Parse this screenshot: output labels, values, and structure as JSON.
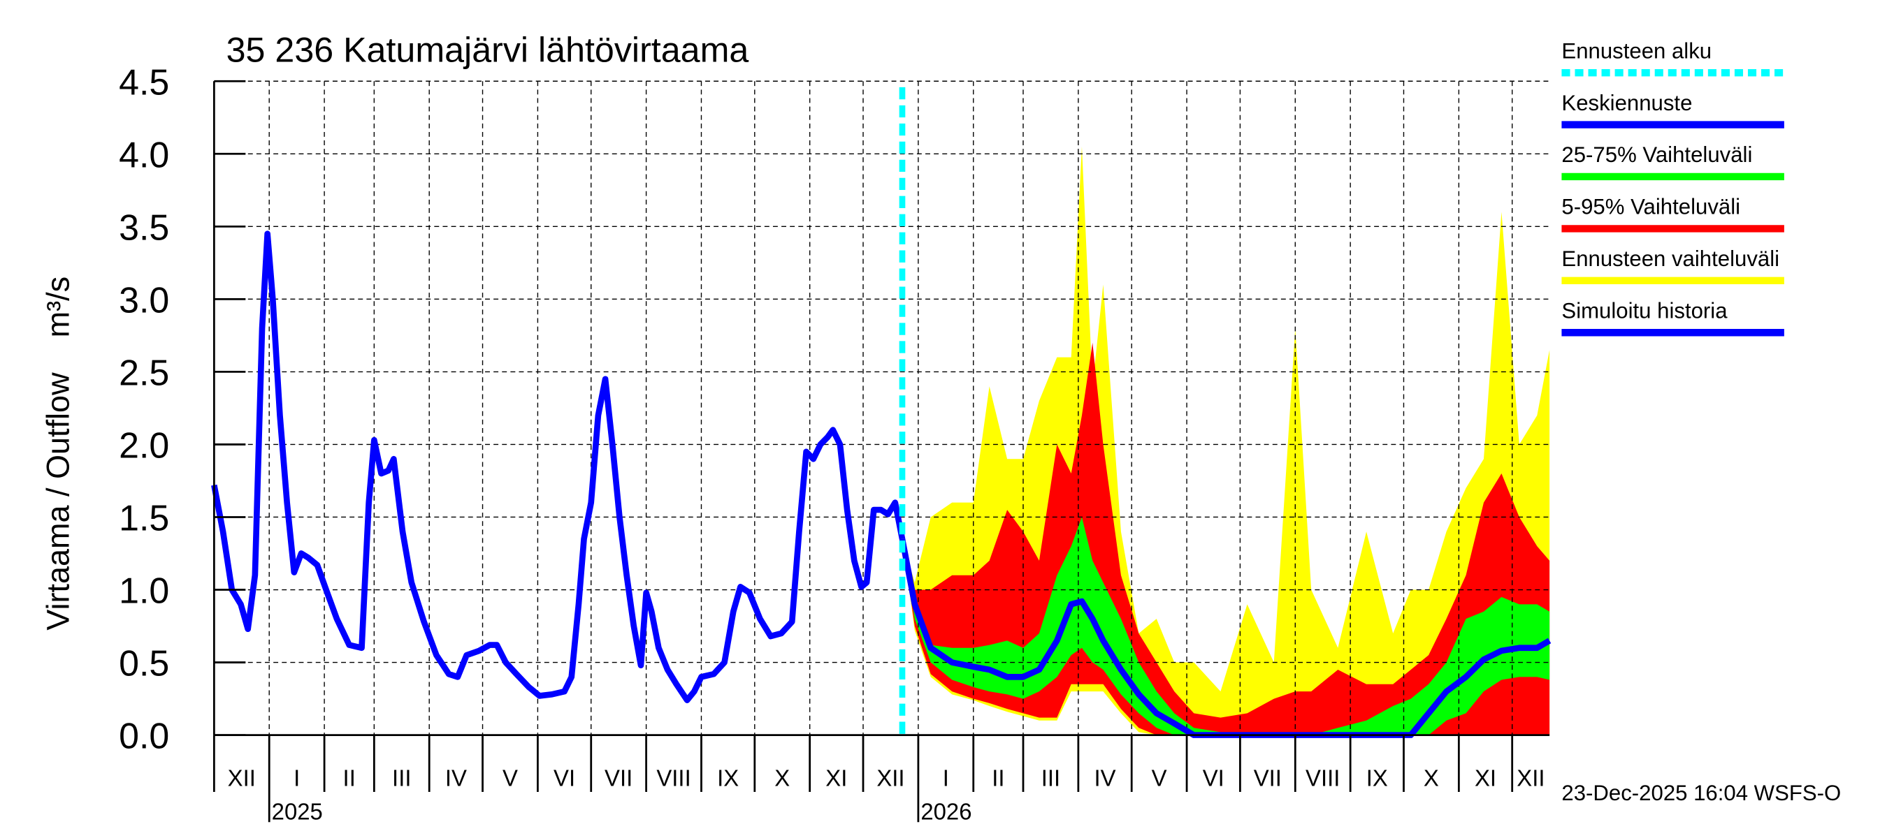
{
  "chart_data": {
    "type": "area",
    "title": "35 236 Katumajärvi lähtövirtaama",
    "ylabel": "Virtaama / Outflow    m³/s",
    "xlabel": "",
    "ylim": [
      0,
      4.5
    ],
    "y_ticks": [
      "0.0",
      "0.5",
      "1.0",
      "1.5",
      "2.0",
      "2.5",
      "3.0",
      "3.5",
      "4.0",
      "4.5"
    ],
    "xlim": [
      "2024-12-01",
      "2026-12-22"
    ],
    "month_labels": [
      "XII",
      "I",
      "II",
      "III",
      "IV",
      "V",
      "VI",
      "VII",
      "VIII",
      "IX",
      "X",
      "XI",
      "XII",
      "I",
      "II",
      "III",
      "IV",
      "V",
      "VI",
      "VII",
      "VIII",
      "IX",
      "X",
      "XI",
      "XII"
    ],
    "year_labels": [
      {
        "label": "2025",
        "date": "2025-01-01"
      },
      {
        "label": "2026",
        "date": "2026-01-01"
      }
    ],
    "grid": true,
    "legend_position": "right",
    "forecast_start": "2025-12-23",
    "timestamp": "23-Dec-2025 16:04 WSFS-O",
    "colors": {
      "forecast_start": "#00ffff",
      "median": "#0000ff",
      "p25_75": "#00ff00",
      "p5_95": "#ff0000",
      "range": "#ffff00",
      "history": "#0000ff"
    },
    "legend": [
      {
        "label": "Ennusteen alku",
        "color": "#00ffff",
        "style": "dashed"
      },
      {
        "label": "Keskiennuste",
        "color": "#0000ff",
        "style": "solid"
      },
      {
        "label": "25-75% Vaihteluväli",
        "color": "#00ff00",
        "style": "solid"
      },
      {
        "label": "5-95% Vaihteluväli",
        "color": "#ff0000",
        "style": "solid"
      },
      {
        "label": "Ennusteen vaihteluväli",
        "color": "#ffff00",
        "style": "solid"
      },
      {
        "label": "Simuloitu historia",
        "color": "#0000ff",
        "style": "solid"
      }
    ],
    "history": [
      [
        "2024-12-01",
        1.72
      ],
      [
        "2024-12-06",
        1.4
      ],
      [
        "2024-12-11",
        1.0
      ],
      [
        "2024-12-16",
        0.9
      ],
      [
        "2024-12-20",
        0.73
      ],
      [
        "2024-12-24",
        1.1
      ],
      [
        "2024-12-28",
        2.8
      ],
      [
        "2024-12-31",
        3.45
      ],
      [
        "2025-01-03",
        3.0
      ],
      [
        "2025-01-07",
        2.2
      ],
      [
        "2025-01-11",
        1.6
      ],
      [
        "2025-01-15",
        1.12
      ],
      [
        "2025-01-19",
        1.25
      ],
      [
        "2025-01-23",
        1.22
      ],
      [
        "2025-01-28",
        1.17
      ],
      [
        "2025-02-02",
        1.0
      ],
      [
        "2025-02-08",
        0.8
      ],
      [
        "2025-02-15",
        0.62
      ],
      [
        "2025-02-22",
        0.6
      ],
      [
        "2025-02-26",
        1.6
      ],
      [
        "2025-03-01",
        2.03
      ],
      [
        "2025-03-05",
        1.8
      ],
      [
        "2025-03-09",
        1.82
      ],
      [
        "2025-03-12",
        1.9
      ],
      [
        "2025-03-17",
        1.4
      ],
      [
        "2025-03-22",
        1.05
      ],
      [
        "2025-03-29",
        0.78
      ],
      [
        "2025-04-05",
        0.55
      ],
      [
        "2025-04-12",
        0.42
      ],
      [
        "2025-04-17",
        0.4
      ],
      [
        "2025-04-22",
        0.55
      ],
      [
        "2025-04-29",
        0.58
      ],
      [
        "2025-05-05",
        0.62
      ],
      [
        "2025-05-09",
        0.62
      ],
      [
        "2025-05-14",
        0.5
      ],
      [
        "2025-05-20",
        0.42
      ],
      [
        "2025-05-27",
        0.33
      ],
      [
        "2025-06-02",
        0.27
      ],
      [
        "2025-06-09",
        0.28
      ],
      [
        "2025-06-16",
        0.3
      ],
      [
        "2025-06-20",
        0.4
      ],
      [
        "2025-06-24",
        0.9
      ],
      [
        "2025-06-27",
        1.35
      ],
      [
        "2025-07-01",
        1.6
      ],
      [
        "2025-07-05",
        2.2
      ],
      [
        "2025-07-09",
        2.45
      ],
      [
        "2025-07-13",
        2.0
      ],
      [
        "2025-07-17",
        1.5
      ],
      [
        "2025-07-21",
        1.1
      ],
      [
        "2025-07-25",
        0.75
      ],
      [
        "2025-07-29",
        0.48
      ],
      [
        "2025-08-01",
        0.98
      ],
      [
        "2025-08-04",
        0.85
      ],
      [
        "2025-08-08",
        0.6
      ],
      [
        "2025-08-13",
        0.45
      ],
      [
        "2025-08-18",
        0.35
      ],
      [
        "2025-08-24",
        0.24
      ],
      [
        "2025-08-28",
        0.3
      ],
      [
        "2025-09-01",
        0.4
      ],
      [
        "2025-09-08",
        0.42
      ],
      [
        "2025-09-14",
        0.5
      ],
      [
        "2025-09-19",
        0.85
      ],
      [
        "2025-09-23",
        1.02
      ],
      [
        "2025-09-28",
        0.98
      ],
      [
        "2025-10-04",
        0.8
      ],
      [
        "2025-10-10",
        0.68
      ],
      [
        "2025-10-16",
        0.7
      ],
      [
        "2025-10-22",
        0.78
      ],
      [
        "2025-10-26",
        1.4
      ],
      [
        "2025-10-30",
        1.95
      ],
      [
        "2025-11-03",
        1.9
      ],
      [
        "2025-11-07",
        2.0
      ],
      [
        "2025-11-11",
        2.05
      ],
      [
        "2025-11-14",
        2.1
      ],
      [
        "2025-11-18",
        2.0
      ],
      [
        "2025-11-22",
        1.55
      ],
      [
        "2025-11-26",
        1.2
      ],
      [
        "2025-11-30",
        1.02
      ],
      [
        "2025-12-03",
        1.05
      ],
      [
        "2025-12-07",
        1.55
      ],
      [
        "2025-12-11",
        1.55
      ],
      [
        "2025-12-15",
        1.52
      ],
      [
        "2025-12-19",
        1.6
      ],
      [
        "2025-12-23",
        1.35
      ]
    ],
    "forecast_columns": [
      "date",
      "median",
      "p25",
      "p75",
      "p5",
      "p95",
      "min",
      "max"
    ],
    "forecast": [
      [
        "2025-12-23",
        1.35,
        1.35,
        1.35,
        1.35,
        1.35,
        1.35,
        1.35
      ],
      [
        "2025-12-30",
        0.9,
        0.8,
        0.95,
        0.75,
        1.0,
        0.72,
        1.05
      ],
      [
        "2026-01-08",
        0.6,
        0.5,
        0.62,
        0.42,
        1.0,
        0.4,
        1.5
      ],
      [
        "2026-01-20",
        0.5,
        0.38,
        0.6,
        0.3,
        1.1,
        0.28,
        1.6
      ],
      [
        "2026-02-01",
        0.47,
        0.33,
        0.6,
        0.25,
        1.1,
        0.24,
        1.6
      ],
      [
        "2026-02-10",
        0.45,
        0.3,
        0.62,
        0.22,
        1.2,
        0.2,
        2.4
      ],
      [
        "2026-02-20",
        0.4,
        0.28,
        0.65,
        0.18,
        1.55,
        0.16,
        1.9
      ],
      [
        "2026-03-01",
        0.4,
        0.25,
        0.6,
        0.15,
        1.4,
        0.13,
        1.9
      ],
      [
        "2026-03-10",
        0.45,
        0.3,
        0.7,
        0.12,
        1.2,
        0.1,
        2.3
      ],
      [
        "2026-03-20",
        0.65,
        0.4,
        1.1,
        0.12,
        2.0,
        0.1,
        2.6
      ],
      [
        "2026-03-28",
        0.9,
        0.55,
        1.3,
        0.35,
        1.8,
        0.3,
        2.6
      ],
      [
        "2026-04-03",
        0.92,
        0.6,
        1.5,
        0.35,
        2.2,
        0.3,
        4.05
      ],
      [
        "2026-04-09",
        0.8,
        0.5,
        1.2,
        0.35,
        2.7,
        0.3,
        2.4
      ],
      [
        "2026-04-15",
        0.65,
        0.45,
        1.05,
        0.35,
        2.0,
        0.3,
        3.1
      ],
      [
        "2026-04-25",
        0.45,
        0.28,
        0.8,
        0.18,
        1.1,
        0.15,
        1.4
      ],
      [
        "2026-05-05",
        0.28,
        0.15,
        0.5,
        0.05,
        0.7,
        0.02,
        0.7
      ],
      [
        "2026-05-15",
        0.15,
        0.05,
        0.3,
        0.0,
        0.5,
        0.0,
        0.8
      ],
      [
        "2026-05-25",
        0.08,
        0.0,
        0.15,
        0.0,
        0.3,
        0.0,
        0.5
      ],
      [
        "2026-06-05",
        0.0,
        0.0,
        0.05,
        0.0,
        0.15,
        0.0,
        0.5
      ],
      [
        "2026-06-20",
        0.0,
        0.0,
        0.02,
        0.0,
        0.12,
        0.0,
        0.3
      ],
      [
        "2026-07-05",
        0.0,
        0.0,
        0.0,
        0.0,
        0.15,
        0.0,
        0.9
      ],
      [
        "2026-07-20",
        0.0,
        0.0,
        0.0,
        0.0,
        0.25,
        0.0,
        0.5
      ],
      [
        "2026-08-01",
        0.0,
        0.0,
        0.0,
        0.0,
        0.3,
        0.0,
        2.8
      ],
      [
        "2026-08-10",
        0.0,
        0.0,
        0.0,
        0.0,
        0.3,
        0.0,
        1.0
      ],
      [
        "2026-08-25",
        0.0,
        0.0,
        0.05,
        0.0,
        0.45,
        0.0,
        0.6
      ],
      [
        "2026-09-10",
        0.0,
        0.0,
        0.1,
        0.0,
        0.35,
        0.0,
        1.4
      ],
      [
        "2026-09-25",
        0.0,
        0.0,
        0.2,
        0.0,
        0.35,
        0.0,
        0.7
      ],
      [
        "2026-10-05",
        0.0,
        0.0,
        0.25,
        0.0,
        0.45,
        0.0,
        1.0
      ],
      [
        "2026-10-15",
        0.15,
        0.0,
        0.35,
        0.0,
        0.55,
        0.0,
        1.0
      ],
      [
        "2026-10-25",
        0.3,
        0.1,
        0.5,
        0.0,
        0.8,
        0.0,
        1.4
      ],
      [
        "2026-11-05",
        0.4,
        0.15,
        0.8,
        0.0,
        1.1,
        0.0,
        1.7
      ],
      [
        "2026-11-15",
        0.52,
        0.3,
        0.85,
        0.0,
        1.6,
        0.0,
        1.9
      ],
      [
        "2026-11-25",
        0.58,
        0.38,
        0.95,
        0.0,
        1.8,
        0.0,
        3.6
      ],
      [
        "2026-12-05",
        0.6,
        0.4,
        0.9,
        0.0,
        1.5,
        0.0,
        2.0
      ],
      [
        "2026-12-15",
        0.6,
        0.4,
        0.9,
        0.0,
        1.3,
        0.0,
        2.2
      ],
      [
        "2026-12-22",
        0.65,
        0.38,
        0.85,
        0.0,
        1.2,
        0.0,
        2.65
      ]
    ]
  }
}
